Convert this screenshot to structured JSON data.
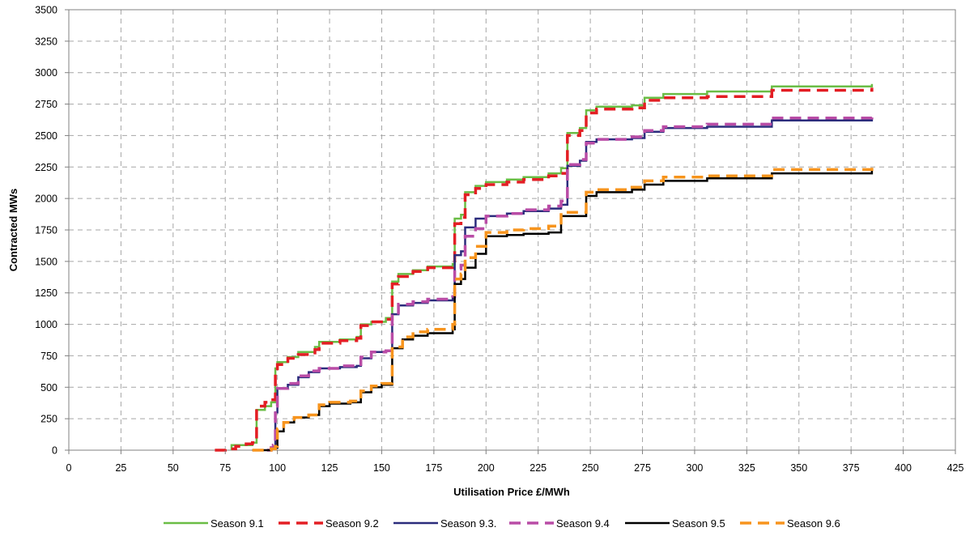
{
  "chart_data": {
    "type": "line",
    "title": "",
    "xlabel": "Utilisation Price £/MWh",
    "ylabel": "Contracted MWs",
    "xlim": [
      0,
      425
    ],
    "ylim": [
      0,
      3500
    ],
    "x_ticks": [
      0,
      25,
      50,
      75,
      100,
      125,
      150,
      175,
      200,
      225,
      250,
      275,
      300,
      325,
      350,
      375,
      400,
      425
    ],
    "y_ticks": [
      0,
      250,
      500,
      750,
      1000,
      1250,
      1500,
      1750,
      2000,
      2250,
      2500,
      2750,
      3000,
      3250,
      3500
    ],
    "grid": true,
    "legend_position": "bottom",
    "step": true,
    "series": [
      {
        "name": "Season 9.1",
        "color": "#6abd45",
        "dash": "solid",
        "points": [
          [
            78,
            0
          ],
          [
            78,
            40
          ],
          [
            88,
            60
          ],
          [
            90,
            320
          ],
          [
            94,
            350
          ],
          [
            97,
            380
          ],
          [
            99,
            650
          ],
          [
            100,
            700
          ],
          [
            105,
            740
          ],
          [
            110,
            780
          ],
          [
            118,
            820
          ],
          [
            120,
            860
          ],
          [
            130,
            880
          ],
          [
            138,
            900
          ],
          [
            140,
            1000
          ],
          [
            145,
            1020
          ],
          [
            152,
            1050
          ],
          [
            155,
            1340
          ],
          [
            158,
            1400
          ],
          [
            165,
            1430
          ],
          [
            172,
            1460
          ],
          [
            184,
            1480
          ],
          [
            185,
            1840
          ],
          [
            188,
            1870
          ],
          [
            190,
            2050
          ],
          [
            195,
            2100
          ],
          [
            200,
            2130
          ],
          [
            210,
            2150
          ],
          [
            218,
            2170
          ],
          [
            230,
            2200
          ],
          [
            236,
            2240
          ],
          [
            239,
            2520
          ],
          [
            245,
            2560
          ],
          [
            248,
            2700
          ],
          [
            253,
            2730
          ],
          [
            270,
            2740
          ],
          [
            276,
            2800
          ],
          [
            285,
            2830
          ],
          [
            306,
            2850
          ],
          [
            337,
            2850
          ],
          [
            337,
            2890
          ],
          [
            385,
            2910
          ]
        ]
      },
      {
        "name": "Season 9.2",
        "color": "#e31e24",
        "dash": "dashed",
        "points": [
          [
            70,
            0
          ],
          [
            75,
            10
          ],
          [
            80,
            30
          ],
          [
            85,
            50
          ],
          [
            88,
            60
          ],
          [
            90,
            350
          ],
          [
            94,
            380
          ],
          [
            97,
            400
          ],
          [
            99,
            620
          ],
          [
            100,
            680
          ],
          [
            105,
            730
          ],
          [
            110,
            760
          ],
          [
            118,
            800
          ],
          [
            120,
            850
          ],
          [
            130,
            870
          ],
          [
            138,
            890
          ],
          [
            140,
            990
          ],
          [
            145,
            1020
          ],
          [
            152,
            1040
          ],
          [
            155,
            1320
          ],
          [
            158,
            1380
          ],
          [
            165,
            1420
          ],
          [
            172,
            1450
          ],
          [
            184,
            1460
          ],
          [
            185,
            1800
          ],
          [
            188,
            1850
          ],
          [
            190,
            2030
          ],
          [
            195,
            2080
          ],
          [
            200,
            2110
          ],
          [
            210,
            2130
          ],
          [
            218,
            2150
          ],
          [
            230,
            2180
          ],
          [
            236,
            2200
          ],
          [
            239,
            2500
          ],
          [
            245,
            2540
          ],
          [
            248,
            2680
          ],
          [
            253,
            2710
          ],
          [
            270,
            2720
          ],
          [
            276,
            2780
          ],
          [
            285,
            2800
          ],
          [
            306,
            2810
          ],
          [
            337,
            2820
          ],
          [
            337,
            2860
          ],
          [
            385,
            2880
          ]
        ]
      },
      {
        "name": "Season 9.3.",
        "color": "#2b2c7c",
        "dash": "solid",
        "points": [
          [
            95,
            0
          ],
          [
            97,
            20
          ],
          [
            98,
            30
          ],
          [
            99,
            300
          ],
          [
            100,
            490
          ],
          [
            105,
            520
          ],
          [
            110,
            580
          ],
          [
            115,
            620
          ],
          [
            120,
            650
          ],
          [
            130,
            660
          ],
          [
            138,
            670
          ],
          [
            140,
            730
          ],
          [
            145,
            780
          ],
          [
            152,
            790
          ],
          [
            155,
            1080
          ],
          [
            158,
            1150
          ],
          [
            165,
            1170
          ],
          [
            172,
            1190
          ],
          [
            184,
            1210
          ],
          [
            185,
            1550
          ],
          [
            188,
            1580
          ],
          [
            190,
            1770
          ],
          [
            195,
            1840
          ],
          [
            200,
            1860
          ],
          [
            210,
            1880
          ],
          [
            218,
            1900
          ],
          [
            230,
            1920
          ],
          [
            236,
            1950
          ],
          [
            239,
            2260
          ],
          [
            245,
            2300
          ],
          [
            248,
            2450
          ],
          [
            253,
            2470
          ],
          [
            270,
            2480
          ],
          [
            276,
            2530
          ],
          [
            285,
            2560
          ],
          [
            306,
            2570
          ],
          [
            337,
            2590
          ],
          [
            337,
            2620
          ],
          [
            385,
            2640
          ]
        ]
      },
      {
        "name": "Season 9.4",
        "color": "#b94ca6",
        "dash": "dashed",
        "points": [
          [
            95,
            0
          ],
          [
            97,
            20
          ],
          [
            98,
            40
          ],
          [
            99,
            350
          ],
          [
            100,
            490
          ],
          [
            105,
            530
          ],
          [
            110,
            590
          ],
          [
            115,
            630
          ],
          [
            120,
            650
          ],
          [
            130,
            670
          ],
          [
            138,
            680
          ],
          [
            140,
            740
          ],
          [
            145,
            780
          ],
          [
            152,
            790
          ],
          [
            155,
            1090
          ],
          [
            158,
            1160
          ],
          [
            165,
            1180
          ],
          [
            172,
            1200
          ],
          [
            184,
            1220
          ],
          [
            185,
            1440
          ],
          [
            188,
            1470
          ],
          [
            190,
            1700
          ],
          [
            195,
            1760
          ],
          [
            200,
            1860
          ],
          [
            210,
            1880
          ],
          [
            218,
            1910
          ],
          [
            230,
            1940
          ],
          [
            236,
            1980
          ],
          [
            239,
            2270
          ],
          [
            245,
            2310
          ],
          [
            248,
            2440
          ],
          [
            253,
            2470
          ],
          [
            270,
            2490
          ],
          [
            276,
            2540
          ],
          [
            285,
            2570
          ],
          [
            306,
            2590
          ],
          [
            337,
            2610
          ],
          [
            337,
            2640
          ],
          [
            385,
            2660
          ]
        ]
      },
      {
        "name": "Season 9.5",
        "color": "#000000",
        "dash": "solid",
        "points": [
          [
            88,
            0
          ],
          [
            97,
            10
          ],
          [
            99,
            20
          ],
          [
            100,
            150
          ],
          [
            103,
            220
          ],
          [
            108,
            260
          ],
          [
            115,
            280
          ],
          [
            120,
            350
          ],
          [
            125,
            370
          ],
          [
            135,
            380
          ],
          [
            140,
            460
          ],
          [
            145,
            500
          ],
          [
            150,
            520
          ],
          [
            155,
            810
          ],
          [
            160,
            880
          ],
          [
            165,
            910
          ],
          [
            172,
            930
          ],
          [
            184,
            960
          ],
          [
            185,
            1320
          ],
          [
            188,
            1360
          ],
          [
            190,
            1450
          ],
          [
            195,
            1560
          ],
          [
            200,
            1700
          ],
          [
            210,
            1710
          ],
          [
            218,
            1720
          ],
          [
            230,
            1730
          ],
          [
            236,
            1860
          ],
          [
            245,
            1860
          ],
          [
            248,
            2020
          ],
          [
            253,
            2050
          ],
          [
            270,
            2070
          ],
          [
            276,
            2110
          ],
          [
            285,
            2140
          ],
          [
            306,
            2160
          ],
          [
            337,
            2180
          ],
          [
            337,
            2200
          ],
          [
            385,
            2220
          ]
        ]
      },
      {
        "name": "Season 9.6",
        "color": "#f7941d",
        "dash": "dashed",
        "points": [
          [
            88,
            0
          ],
          [
            97,
            10
          ],
          [
            99,
            30
          ],
          [
            100,
            170
          ],
          [
            103,
            220
          ],
          [
            108,
            260
          ],
          [
            115,
            280
          ],
          [
            120,
            360
          ],
          [
            125,
            380
          ],
          [
            135,
            390
          ],
          [
            140,
            470
          ],
          [
            145,
            510
          ],
          [
            150,
            530
          ],
          [
            155,
            820
          ],
          [
            160,
            900
          ],
          [
            165,
            940
          ],
          [
            172,
            960
          ],
          [
            184,
            1000
          ],
          [
            185,
            1360
          ],
          [
            188,
            1400
          ],
          [
            190,
            1530
          ],
          [
            195,
            1620
          ],
          [
            200,
            1730
          ],
          [
            210,
            1750
          ],
          [
            218,
            1760
          ],
          [
            230,
            1780
          ],
          [
            236,
            1890
          ],
          [
            245,
            1890
          ],
          [
            248,
            2050
          ],
          [
            253,
            2070
          ],
          [
            270,
            2090
          ],
          [
            276,
            2140
          ],
          [
            285,
            2170
          ],
          [
            306,
            2180
          ],
          [
            337,
            2200
          ],
          [
            337,
            2230
          ],
          [
            385,
            2250
          ]
        ]
      }
    ]
  }
}
